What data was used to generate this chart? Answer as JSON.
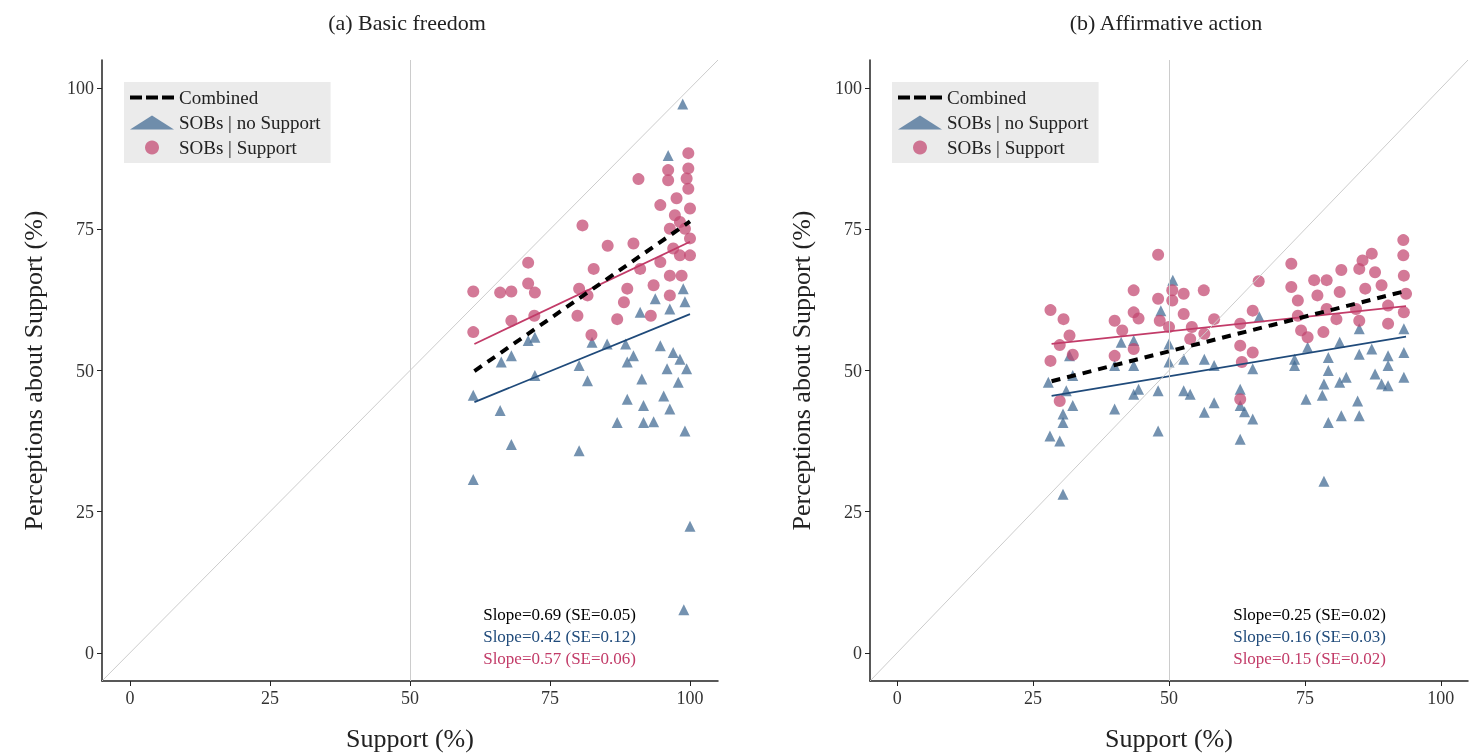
{
  "chart_data": [
    {
      "type": "scatter",
      "title": "(a) Basic freedom",
      "xlabel": "Support (%)",
      "ylabel": "Perceptions about Support (%)",
      "xlim": [
        -5,
        105
      ],
      "ylim": [
        -5,
        105
      ],
      "xticks": [
        0,
        25,
        50,
        75,
        100
      ],
      "yticks": [
        0,
        25,
        50,
        75,
        100
      ],
      "grid": false,
      "legend": "top left",
      "ref_lines": [
        {
          "axis": "x",
          "value": 50,
          "color": "#cccccc"
        }
      ],
      "annotations": [
        "Slope=0.69 (SE=0.05)",
        "Slope=0.42 (SE=0.12)",
        "Slope=0.57 (SE=0.06)"
      ],
      "series": [
        {
          "name": "Combined",
          "type": "line",
          "color": "#000000",
          "line_style": "dashed",
          "marker": "none",
          "x": [
            61.5,
            100
          ],
          "values": [
            49.9,
            76.4
          ]
        },
        {
          "type": "line",
          "color": "#1f4a7a",
          "line_style": "solid",
          "marker": "none",
          "x": [
            61.5,
            100
          ],
          "values": [
            44.4,
            60
          ]
        },
        {
          "type": "line",
          "color": "#c23b68",
          "line_style": "solid",
          "marker": "none",
          "x": [
            61.5,
            100
          ],
          "values": [
            54.7,
            72.8
          ]
        },
        {
          "type": "line",
          "color": "#cccccc",
          "line_style": "solid",
          "marker": "none",
          "x": [
            -5,
            105
          ],
          "values": [
            -5,
            105
          ]
        },
        {
          "name": "SOBs | no Support",
          "color": "#3e6892",
          "marker": "triangle",
          "x": [
            61.3,
            61.3,
            66.1,
            68.1,
            68.1,
            66.3,
            71.1,
            72.3,
            72.3,
            80.2,
            80.2,
            81.7,
            82.5,
            85.2,
            87.0,
            88.8,
            88.8,
            88.5,
            89.9,
            91.7,
            93.5,
            91.7,
            91.4,
            91.1,
            94.7,
            95.3,
            95.9,
            96.4,
            97.0,
            97.9,
            98.2,
            99.1,
            99.4,
            96.1,
            98.7,
            93.8,
            96.4,
            98.8,
            99.1,
            100,
            98.9
          ],
          "values": [
            30.7,
            45.6,
            42.9,
            36.9,
            52.6,
            51.5,
            55.3,
            55.9,
            49.1,
            35.8,
            50.9,
            48.2,
            55.0,
            54.7,
            40.8,
            44.9,
            51.5,
            54.7,
            52.6,
            40.8,
            40.9,
            43.8,
            48.5,
            60.3,
            54.4,
            45.5,
            50.3,
            43.2,
            53.2,
            47.9,
            52.0,
            39.3,
            50.3,
            88.1,
            97.2,
            62.7,
            60.9,
            64.5,
            62.2,
            22.4,
            7.6
          ]
        },
        {
          "name": "SOBs | Support",
          "color": "#c2456f",
          "marker": "circle",
          "x": [
            61.3,
            61.3,
            66.1,
            68.1,
            71.1,
            71.1,
            72.3,
            68.1,
            72.2,
            80.8,
            80.2,
            81.7,
            79.9,
            82.4,
            85.3,
            82.8,
            87.0,
            89.9,
            90.8,
            88.8,
            91.1,
            88.2,
            93.0,
            93.5,
            94.7,
            94.7,
            96.1,
            96.1,
            96.4,
            96.4,
            96.4,
            97.0,
            97.6,
            98.2,
            98.2,
            99.7,
            99.7,
            99.7,
            100,
            100,
            100,
            99.1,
            98.5,
            97.3,
            99.4
          ],
          "values": [
            64.0,
            56.8,
            63.8,
            64.0,
            69.1,
            65.4,
            63.8,
            58.8,
            59.7,
            75.7,
            64.5,
            63.3,
            59.7,
            56.3,
            72.1,
            68.0,
            59.1,
            72.5,
            83.9,
            64.5,
            68.0,
            62.1,
            59.7,
            65.1,
            69.2,
            79.3,
            85.5,
            83.7,
            75.1,
            66.8,
            63.3,
            71.6,
            80.5,
            76.3,
            70.4,
            88.5,
            85.8,
            82.2,
            78.7,
            73.4,
            70.4,
            75.1,
            66.8,
            77.5,
            84.0
          ]
        }
      ]
    },
    {
      "type": "scatter",
      "title": "(b) Affirmative action",
      "xlabel": "Support (%)",
      "ylabel": "Perceptions about Support (%)",
      "xlim": [
        -5,
        105
      ],
      "ylim": [
        -5,
        105
      ],
      "xticks": [
        0,
        25,
        50,
        75,
        100
      ],
      "yticks": [
        0,
        25,
        50,
        75,
        100
      ],
      "grid": false,
      "legend": "top left",
      "ref_lines": [
        {
          "axis": "x",
          "value": 50,
          "color": "#cccccc"
        }
      ],
      "annotations": [
        "Slope=0.25 (SE=0.02)",
        "Slope=0.16 (SE=0.03)",
        "Slope=0.15 (SE=0.02)"
      ],
      "series": [
        {
          "name": "Combined",
          "type": "line",
          "color": "#000000",
          "line_style": "dashed",
          "marker": "none",
          "x": [
            28.4,
            93.6
          ],
          "values": [
            48.1,
            64.1
          ]
        },
        {
          "type": "line",
          "color": "#1f4a7a",
          "line_style": "solid",
          "marker": "none",
          "x": [
            28.4,
            93.6
          ],
          "values": [
            45.5,
            56.0
          ]
        },
        {
          "type": "line",
          "color": "#c23b68",
          "line_style": "solid",
          "marker": "none",
          "x": [
            28.4,
            93.6
          ],
          "values": [
            54.7,
            61.4
          ]
        },
        {
          "type": "line",
          "color": "#cccccc",
          "line_style": "solid",
          "marker": "none",
          "x": [
            -5,
            105
          ],
          "values": [
            -5,
            105
          ]
        },
        {
          "name": "SOBs | no Support",
          "color": "#3e6892",
          "marker": "triangle",
          "x": [
            50.7,
            48.5,
            41.2,
            43.5,
            31.7,
            27.8,
            32.3,
            31.1,
            32.3,
            30.5,
            30.5,
            28.1,
            29.9,
            30.5,
            40.0,
            40.0,
            43.5,
            43.5,
            44.4,
            48.0,
            48.0,
            50.0,
            50.0,
            52.7,
            52.7,
            53.9,
            56.5,
            58.3,
            58.3,
            56.5,
            63.1,
            63.1,
            63.9,
            65.4,
            63.1,
            66.6,
            65.4,
            73.1,
            73.1,
            75.5,
            75.2,
            78.2,
            78.5,
            79.3,
            79.3,
            79.3,
            78.5,
            81.4,
            81.7,
            81.4,
            82.6,
            84.7,
            85.0,
            85.0,
            87.3,
            87.9,
            89.1,
            90.3,
            90.3,
            90.3,
            93.2,
            93.2,
            93.2,
            85.0
          ],
          "values": [
            66.0,
            60.6,
            55.0,
            55.3,
            52.6,
            47.9,
            49.1,
            46.4,
            43.8,
            42.3,
            40.8,
            38.4,
            37.5,
            28.1,
            43.2,
            50.9,
            50.9,
            45.8,
            46.7,
            46.4,
            39.3,
            51.5,
            54.7,
            52.0,
            46.4,
            45.8,
            52.0,
            50.9,
            44.3,
            42.6,
            46.7,
            43.8,
            42.7,
            41.4,
            37.8,
            59.5,
            50.3,
            50.9,
            52.0,
            54.1,
            44.9,
            45.6,
            30.4,
            40.8,
            50.0,
            52.3,
            47.6,
            47.9,
            42.0,
            55.0,
            48.8,
            44.6,
            42.0,
            52.9,
            53.8,
            49.4,
            47.6,
            47.3,
            50.9,
            52.6,
            48.8,
            53.2,
            57.4,
            57.4
          ]
        },
        {
          "name": "SOBs | Support",
          "color": "#c2456f",
          "marker": "circle",
          "x": [
            48.0,
            28.2,
            30.6,
            28.2,
            31.7,
            29.9,
            32.3,
            29.9,
            40.0,
            43.5,
            43.5,
            44.4,
            41.4,
            40.0,
            43.5,
            48.0,
            48.3,
            50.6,
            50.6,
            52.7,
            56.4,
            52.7,
            50.0,
            54.2,
            58.3,
            56.5,
            53.9,
            66.5,
            65.4,
            63.1,
            63.1,
            65.4,
            63.4,
            63.1,
            72.5,
            72.5,
            73.7,
            73.7,
            74.3,
            75.5,
            76.7,
            77.3,
            79.0,
            79.0,
            78.4,
            81.7,
            81.4,
            80.8,
            85.0,
            85.6,
            87.3,
            87.9,
            86.1,
            84.4,
            85.0,
            89.1,
            90.3,
            90.3,
            93.1,
            93.1,
            93.2,
            93.6,
            93.2
          ],
          "values": [
            70.5,
            60.7,
            59.1,
            51.7,
            56.2,
            54.5,
            52.8,
            44.6,
            58.8,
            64.2,
            60.3,
            59.2,
            57.1,
            52.6,
            53.8,
            62.7,
            58.8,
            64.2,
            62.4,
            63.6,
            64.2,
            60.0,
            57.7,
            57.7,
            59.1,
            56.5,
            55.6,
            65.8,
            60.6,
            58.3,
            54.4,
            53.2,
            51.5,
            44.9,
            68.9,
            64.8,
            62.4,
            59.7,
            57.1,
            55.9,
            66.0,
            63.3,
            66.0,
            60.9,
            56.8,
            67.8,
            63.9,
            59.1,
            68.0,
            69.5,
            70.7,
            67.4,
            64.5,
            60.9,
            58.8,
            65.1,
            61.5,
            58.3,
            73.1,
            70.4,
            66.8,
            63.6,
            60.3
          ]
        }
      ]
    }
  ]
}
